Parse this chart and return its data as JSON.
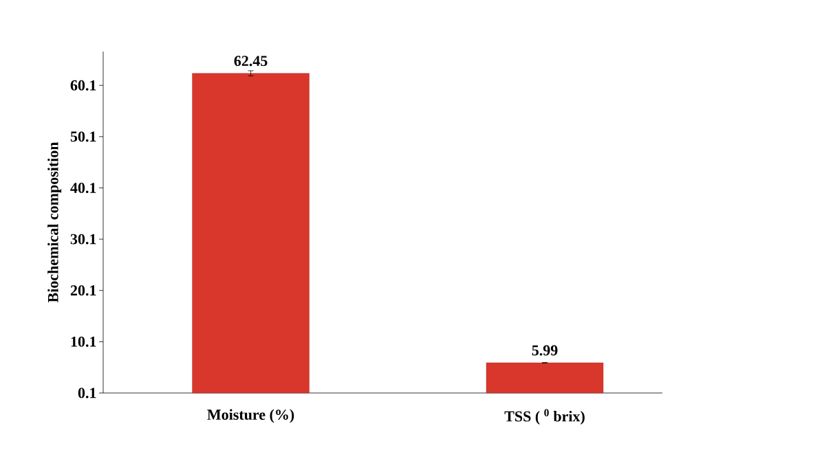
{
  "chart_data": {
    "type": "bar",
    "ylabel": "Biochemical composition",
    "categories": [
      "Moisture  (%)",
      "TSS ( $^{0}$ brix)"
    ],
    "values": [
      62.45,
      5.99
    ],
    "errors": [
      0.5,
      0.05
    ],
    "color": "#d9372b",
    "value_labels": [
      "62.45",
      "5.99"
    ],
    "ylim": [
      0.1,
      66.7
    ],
    "yticks": [
      0.1,
      10.1,
      20.1,
      30.1,
      40.1,
      50.1,
      60.1
    ],
    "grid": false
  }
}
